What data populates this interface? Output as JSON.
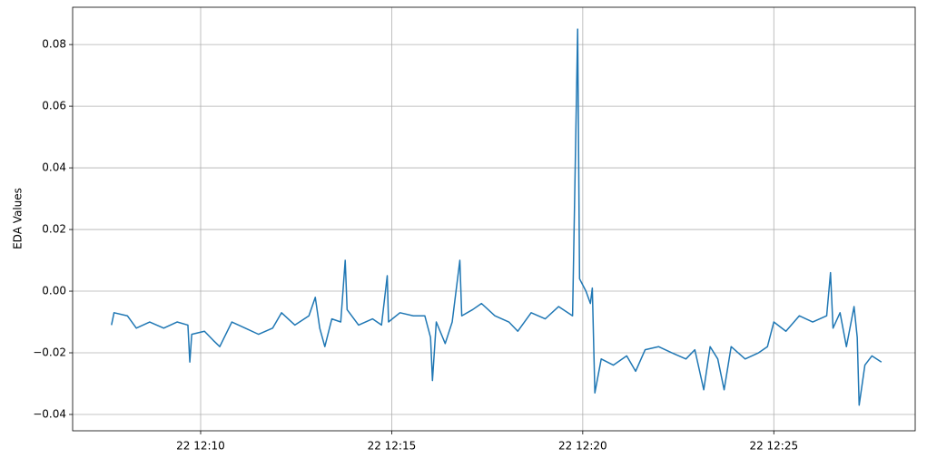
{
  "chart_data": {
    "type": "line",
    "y_label": "EDA Values",
    "x": [
      "22 12:07:40",
      "22 12:07:44",
      "22 12:08:05",
      "22 12:08:19",
      "22 12:08:40",
      "22 12:09:02",
      "22 12:09:23",
      "22 12:09:40",
      "22 12:09:43",
      "22 12:09:46",
      "22 12:10:06",
      "22 12:10:20",
      "22 12:10:30",
      "22 12:10:49",
      "22 12:11:10",
      "22 12:11:31",
      "22 12:11:53",
      "22 12:12:07",
      "22 12:12:28",
      "22 12:12:50",
      "22 12:13:00",
      "22 12:13:07",
      "22 12:13:15",
      "22 12:13:26",
      "22 12:13:40",
      "22 12:13:47",
      "22 12:13:50",
      "22 12:14:08",
      "22 12:14:30",
      "22 12:14:44",
      "22 12:14:53",
      "22 12:14:55",
      "22 12:15:13",
      "22 12:15:34",
      "22 12:15:52",
      "22 12:16:01",
      "22 12:16:04",
      "22 12:16:10",
      "22 12:16:24",
      "22 12:16:35",
      "22 12:16:47",
      "22 12:16:50",
      "22 12:17:07",
      "22 12:17:21",
      "22 12:17:42",
      "22 12:18:04",
      "22 12:18:18",
      "22 12:18:39",
      "22 12:19:01",
      "22 12:19:22",
      "22 12:19:44",
      "22 12:19:52",
      "22 12:19:55",
      "22 12:20:05",
      "22 12:20:12",
      "22 12:20:15",
      "22 12:20:19",
      "22 12:20:29",
      "22 12:20:48",
      "22 12:21:09",
      "22 12:21:23",
      "22 12:21:38",
      "22 12:21:59",
      "22 12:22:20",
      "22 12:22:42",
      "22 12:22:56",
      "22 12:23:10",
      "22 12:23:20",
      "22 12:23:32",
      "22 12:23:42",
      "22 12:23:53",
      "22 12:24:15",
      "22 12:24:36",
      "22 12:24:50",
      "22 12:25:00",
      "22 12:25:19",
      "22 12:25:40",
      "22 12:26:01",
      "22 12:26:23",
      "22 12:26:29",
      "22 12:26:33",
      "22 12:26:44",
      "22 12:26:54",
      "22 12:27:06",
      "22 12:27:11",
      "22 12:27:14",
      "22 12:27:23",
      "22 12:27:34",
      "22 12:27:49"
    ],
    "series": [
      {
        "color": "#1f77b4",
        "values": [
          -0.011,
          -0.007,
          -0.008,
          -0.012,
          -0.01,
          -0.012,
          -0.01,
          -0.011,
          -0.023,
          -0.014,
          -0.013,
          -0.016,
          -0.018,
          -0.01,
          -0.012,
          -0.014,
          -0.012,
          -0.007,
          -0.011,
          -0.008,
          -0.002,
          -0.012,
          -0.018,
          -0.009,
          -0.01,
          0.01,
          -0.006,
          -0.011,
          -0.009,
          -0.011,
          0.005,
          -0.01,
          -0.007,
          -0.008,
          -0.008,
          -0.015,
          -0.029,
          -0.01,
          -0.017,
          -0.01,
          0.01,
          -0.008,
          -0.006,
          -0.004,
          -0.008,
          -0.01,
          -0.013,
          -0.007,
          -0.009,
          -0.005,
          -0.008,
          0.085,
          0.004,
          0.0,
          -0.004,
          0.001,
          -0.033,
          -0.022,
          -0.024,
          -0.021,
          -0.026,
          -0.019,
          -0.018,
          -0.02,
          -0.022,
          -0.019,
          -0.032,
          -0.018,
          -0.022,
          -0.032,
          -0.018,
          -0.022,
          -0.02,
          -0.018,
          -0.01,
          -0.013,
          -0.008,
          -0.01,
          -0.008,
          0.006,
          -0.012,
          -0.007,
          -0.018,
          -0.005,
          -0.015,
          -0.037,
          -0.024,
          -0.021,
          -0.023
        ]
      }
    ],
    "xlim": [
      "22 12:06:39",
      "22 12:28:42"
    ],
    "xticks": [
      "22 12:10",
      "22 12:15",
      "22 12:20",
      "22 12:25"
    ],
    "ylim": [
      -0.0453,
      0.0921
    ],
    "yticks": [
      {
        "value": -0.04,
        "label": "−0.04"
      },
      {
        "value": -0.02,
        "label": "−0.02"
      },
      {
        "value": 0,
        "label": "0.00"
      },
      0.02,
      0.04,
      0.06,
      0.08
    ],
    "grid": true
  }
}
